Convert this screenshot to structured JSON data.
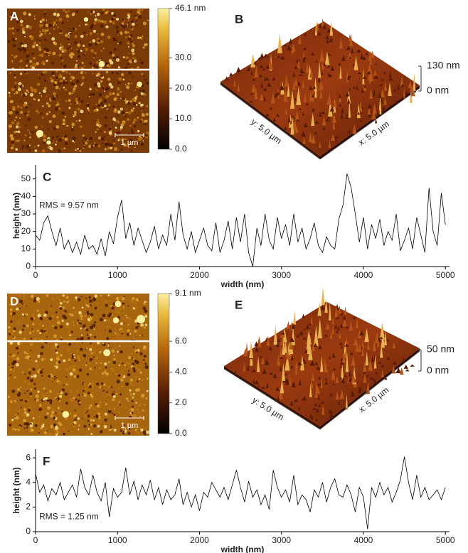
{
  "chart_data": [
    {
      "type": "image",
      "label": "A",
      "scale_bar": "1 µm",
      "colorbar": {
        "lim": [
          0,
          46.1
        ],
        "ticks": [
          {
            "value": 46.1,
            "label": "46.1 nm"
          },
          {
            "value": 30,
            "label": "30.0"
          },
          {
            "value": 20,
            "label": "20.0"
          },
          {
            "value": 10,
            "label": "10.0"
          },
          {
            "value": 0,
            "label": "0.0"
          }
        ]
      }
    },
    {
      "type": "surface",
      "label": "B",
      "zlim": [
        0,
        130
      ],
      "zticks": [
        {
          "value": 130,
          "label": "130 nm"
        },
        {
          "value": 0,
          "label": "0 nm"
        }
      ],
      "x_label": "x: 5.0 µm",
      "y_label": "y: 5.0 µm"
    },
    {
      "type": "line",
      "label": "C",
      "annotation": "RMS = 9.57 nm",
      "x_label": "width (nm)",
      "y_label": "height (nm)",
      "color": "#000000",
      "xlim": [
        0,
        5050
      ],
      "ylim": [
        0,
        58
      ],
      "xticks": [
        0,
        1000,
        2000,
        3000,
        4000,
        5000
      ],
      "yticks": [
        0,
        10,
        20,
        30,
        40,
        50
      ],
      "x": [
        0,
        50,
        100,
        150,
        200,
        250,
        300,
        350,
        400,
        450,
        500,
        550,
        600,
        650,
        700,
        750,
        800,
        850,
        900,
        950,
        1000,
        1050,
        1100,
        1150,
        1200,
        1250,
        1300,
        1350,
        1400,
        1450,
        1500,
        1550,
        1600,
        1650,
        1700,
        1750,
        1800,
        1850,
        1900,
        1950,
        2000,
        2050,
        2100,
        2150,
        2200,
        2250,
        2300,
        2350,
        2400,
        2450,
        2500,
        2550,
        2600,
        2650,
        2700,
        2750,
        2800,
        2850,
        2900,
        2950,
        3000,
        3050,
        3100,
        3150,
        3200,
        3250,
        3300,
        3350,
        3400,
        3450,
        3500,
        3550,
        3600,
        3650,
        3700,
        3750,
        3800,
        3850,
        3900,
        3950,
        4000,
        4050,
        4100,
        4150,
        4200,
        4250,
        4300,
        4350,
        4400,
        4450,
        4500,
        4550,
        4600,
        4650,
        4700,
        4750,
        4800,
        4850,
        4900,
        4950,
        5000
      ],
      "values": [
        18,
        15,
        25,
        29,
        20,
        12,
        22,
        10,
        15,
        8,
        14,
        7,
        18,
        10,
        12,
        7,
        16,
        6,
        20,
        13,
        28,
        38,
        16,
        25,
        12,
        22,
        15,
        8,
        14,
        23,
        10,
        18,
        12,
        30,
        15,
        37,
        18,
        10,
        20,
        8,
        15,
        22,
        12,
        9,
        25,
        8,
        15,
        26,
        10,
        28,
        14,
        30,
        8,
        0,
        22,
        12,
        30,
        15,
        10,
        28,
        16,
        24,
        12,
        30,
        14,
        22,
        10,
        16,
        25,
        12,
        8,
        17,
        12,
        10,
        27,
        35,
        53,
        45,
        30,
        14,
        28,
        10,
        24,
        16,
        27,
        12,
        20,
        15,
        30,
        9,
        15,
        22,
        10,
        28,
        18,
        8,
        45,
        20,
        12,
        42,
        24
      ]
    },
    {
      "type": "image",
      "label": "D",
      "scale_bar": "1 µm",
      "colorbar": {
        "lim": [
          0,
          9.1
        ],
        "ticks": [
          {
            "value": 9.1,
            "label": "9.1 nm"
          },
          {
            "value": 6,
            "label": "6.0"
          },
          {
            "value": 4,
            "label": "4.0"
          },
          {
            "value": 2,
            "label": "2.0"
          },
          {
            "value": 0,
            "label": "0.0"
          }
        ]
      }
    },
    {
      "type": "surface",
      "label": "E",
      "zlim": [
        0,
        50
      ],
      "zticks": [
        {
          "value": 50,
          "label": "50 nm"
        },
        {
          "value": 0,
          "label": "0 nm"
        }
      ],
      "x_label": "x: 5.0 µm",
      "y_label": "y: 5.0 µm"
    },
    {
      "type": "line",
      "label": "F",
      "annotation": "RMS = 1.25 nm",
      "x_label": "width (nm)",
      "y_label": "height (nm)",
      "color": "#000000",
      "xlim": [
        0,
        5050
      ],
      "ylim": [
        0,
        6.7
      ],
      "xticks": [
        0,
        1000,
        2000,
        3000,
        4000,
        5000
      ],
      "yticks": [
        0,
        2,
        4,
        6
      ],
      "x": [
        0,
        50,
        100,
        150,
        200,
        250,
        300,
        350,
        400,
        450,
        500,
        550,
        600,
        650,
        700,
        750,
        800,
        850,
        900,
        950,
        1000,
        1050,
        1100,
        1150,
        1200,
        1250,
        1300,
        1350,
        1400,
        1450,
        1500,
        1550,
        1600,
        1650,
        1700,
        1750,
        1800,
        1850,
        1900,
        1950,
        2000,
        2050,
        2100,
        2150,
        2200,
        2250,
        2300,
        2350,
        2400,
        2450,
        2500,
        2550,
        2600,
        2650,
        2700,
        2750,
        2800,
        2850,
        2900,
        2950,
        3000,
        3050,
        3100,
        3150,
        3200,
        3250,
        3300,
        3350,
        3400,
        3450,
        3500,
        3550,
        3600,
        3650,
        3700,
        3750,
        3800,
        3850,
        3900,
        3950,
        4000,
        4050,
        4100,
        4150,
        4200,
        4250,
        4300,
        4350,
        4400,
        4450,
        4500,
        4550,
        4600,
        4650,
        4700,
        4750,
        4800,
        4850,
        4900,
        4950,
        5000
      ],
      "values": [
        4.7,
        3.2,
        3.8,
        2.5,
        3.5,
        3.0,
        4.0,
        2.6,
        3.2,
        3.8,
        2.8,
        5.1,
        3.6,
        3.0,
        4.6,
        3.2,
        2.5,
        4.0,
        1.2,
        3.5,
        2.8,
        3.2,
        5.2,
        3.0,
        4.1,
        2.6,
        3.8,
        3.0,
        4.2,
        2.6,
        3.6,
        2.2,
        3.4,
        2.6,
        3.0,
        4.3,
        2.2,
        3.2,
        2.0,
        3.0,
        1.7,
        3.2,
        2.8,
        4.0,
        3.4,
        2.8,
        3.6,
        2.6,
        3.8,
        5.0,
        3.6,
        2.4,
        4.1,
        2.8,
        3.4,
        2.2,
        3.0,
        1.8,
        5.0,
        3.6,
        2.8,
        3.4,
        2.4,
        4.6,
        2.2,
        3.0,
        2.6,
        1.6,
        3.4,
        2.8,
        4.0,
        2.4,
        3.6,
        4.3,
        3.0,
        2.8,
        3.8,
        3.0,
        1.6,
        3.6,
        2.8,
        0.2,
        3.6,
        2.8,
        4.0,
        3.0,
        3.6,
        2.4,
        3.2,
        4.2,
        6.1,
        4.0,
        2.6,
        4.6,
        2.8,
        3.6,
        2.6,
        3.0,
        3.4,
        2.6,
        3.6
      ]
    }
  ]
}
